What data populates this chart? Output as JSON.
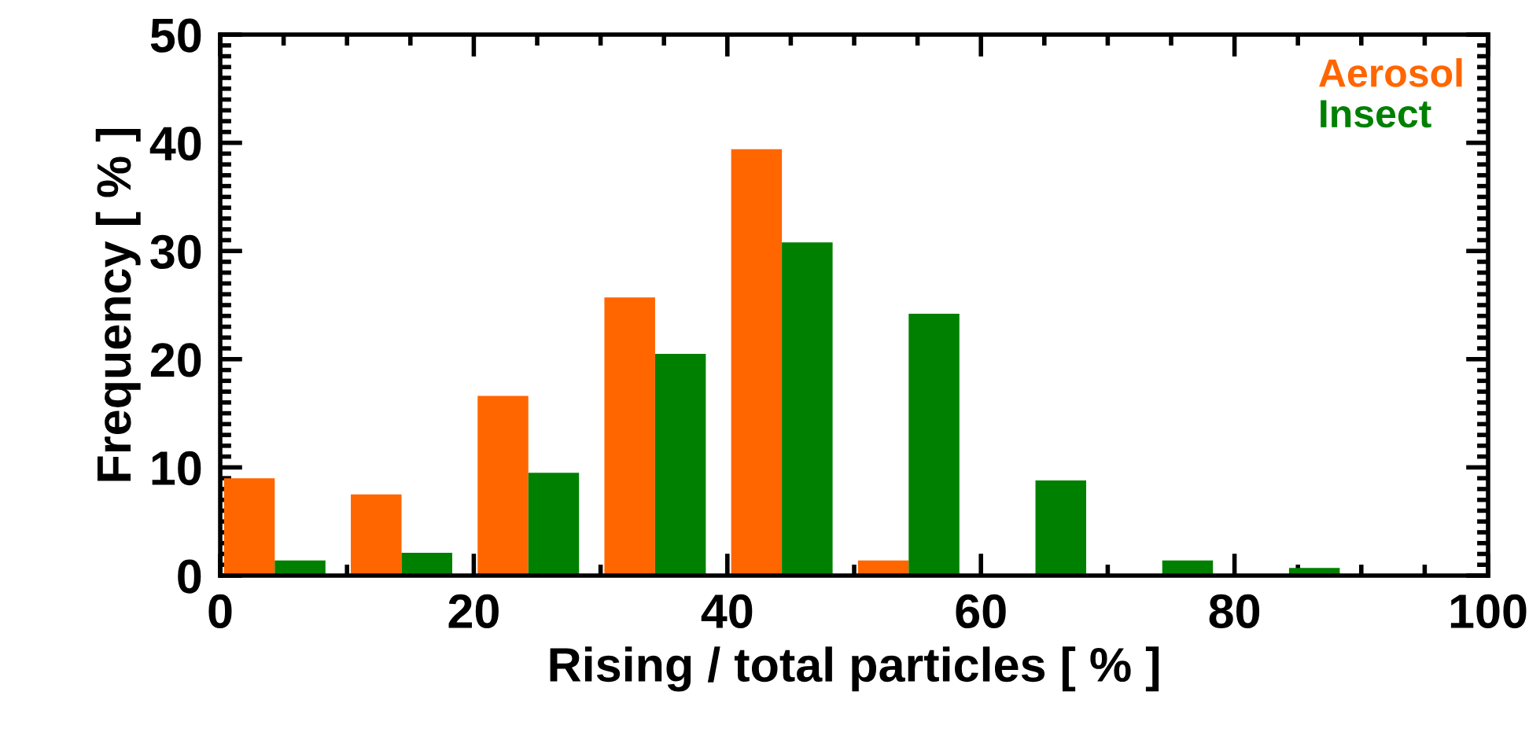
{
  "chart_data": {
    "type": "bar",
    "xlabel": "Rising / total particles [ % ]",
    "ylabel": "Frequency [ % ]",
    "xlim": [
      0,
      100
    ],
    "xticks": [
      0,
      20,
      40,
      60,
      80,
      100
    ],
    "ylim": [
      0,
      50
    ],
    "yticks": [
      0,
      10,
      20,
      30,
      40,
      50
    ],
    "legend": "top right",
    "grid": false,
    "series": [
      {
        "name": "Aerosol",
        "color": "#ff6600",
        "x": [
          2.3,
          12.3,
          22.3,
          32.3,
          42.3,
          52.3
        ],
        "values": [
          9.0,
          7.5,
          16.6,
          25.7,
          39.4,
          1.4
        ]
      },
      {
        "name": "Insect",
        "color": "#008000",
        "x": [
          6.3,
          16.3,
          26.3,
          36.3,
          46.3,
          56.3,
          66.3,
          76.3,
          86.3
        ],
        "values": [
          1.4,
          2.1,
          9.5,
          20.5,
          30.8,
          24.2,
          8.8,
          1.4,
          0.7
        ]
      }
    ]
  }
}
